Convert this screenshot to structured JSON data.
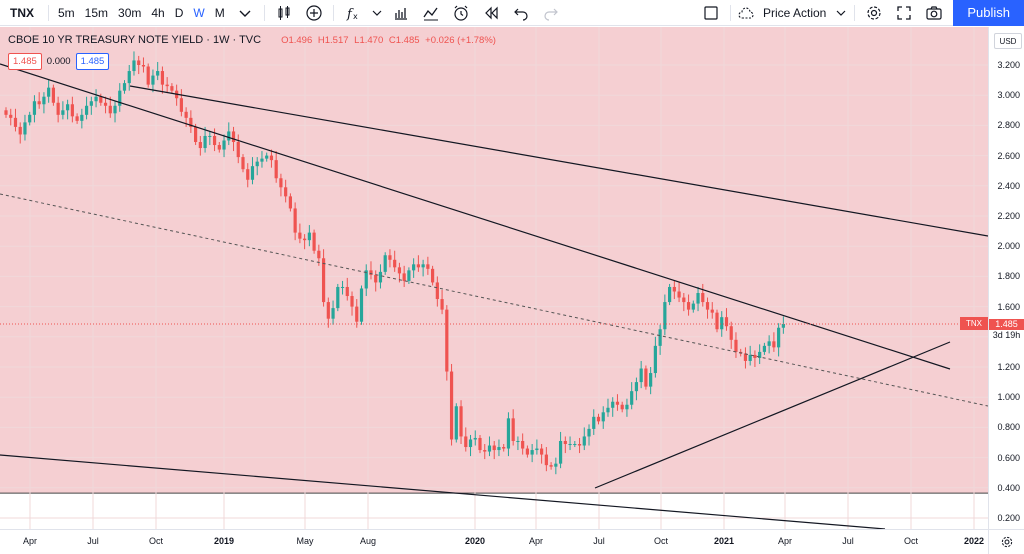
{
  "toolbar": {
    "symbol": "TNX",
    "intervals": [
      "5m",
      "15m",
      "30m",
      "4h",
      "D",
      "W",
      "M"
    ],
    "active_interval": "W",
    "layout_name": "Price Action",
    "publish_label": "Publish"
  },
  "legend": {
    "title": "CBOE 10 YR TREASURY NOTE YIELD · 1W · TVC",
    "open": "O1.496",
    "high": "H1.517",
    "low": "L1.470",
    "close": "C1.485",
    "change": "+0.026 (+1.78%)",
    "val1": "1.485",
    "val2": "0.000",
    "val3": "1.485"
  },
  "price_axis": {
    "currency": "USD",
    "ticks": [
      "3.200",
      "3.000",
      "2.800",
      "2.600",
      "2.400",
      "2.200",
      "2.000",
      "1.800",
      "1.600",
      "1.400",
      "1.200",
      "1.000",
      "0.800",
      "0.600",
      "0.400",
      "0.200"
    ],
    "last_price": "1.485",
    "countdown": "3d 19h",
    "tag": "TNX"
  },
  "time_axis": {
    "labels": [
      {
        "text": "Apr",
        "year": false
      },
      {
        "text": "Jul",
        "year": false
      },
      {
        "text": "Oct",
        "year": false
      },
      {
        "text": "2019",
        "year": true
      },
      {
        "text": "May",
        "year": false
      },
      {
        "text": "Aug",
        "year": false
      },
      {
        "text": "2020",
        "year": true
      },
      {
        "text": "Apr",
        "year": false
      },
      {
        "text": "Jul",
        "year": false
      },
      {
        "text": "Oct",
        "year": false
      },
      {
        "text": "2021",
        "year": true
      },
      {
        "text": "Apr",
        "year": false
      },
      {
        "text": "Jul",
        "year": false
      },
      {
        "text": "Oct",
        "year": false
      },
      {
        "text": "2022",
        "year": true
      }
    ]
  },
  "colors": {
    "up": "#26a69a",
    "down": "#ef5350",
    "bg_zone": "#f5cfd2",
    "accent": "#2962ff"
  },
  "chart_data": {
    "type": "candlestick",
    "ylim": [
      0.2,
      3.3
    ],
    "series": [
      {
        "name": "TNX",
        "close_values": [
          2.87,
          2.85,
          2.79,
          2.74,
          2.82,
          2.87,
          2.96,
          2.94,
          2.99,
          3.05,
          2.95,
          2.87,
          2.9,
          2.94,
          2.86,
          2.83,
          2.87,
          2.93,
          2.96,
          2.99,
          2.95,
          2.93,
          2.88,
          2.93,
          3.03,
          3.08,
          3.16,
          3.23,
          3.2,
          3.19,
          3.07,
          3.13,
          3.16,
          3.07,
          3.06,
          3.03,
          2.98,
          2.89,
          2.85,
          2.79,
          2.69,
          2.65,
          2.73,
          2.73,
          2.67,
          2.64,
          2.7,
          2.76,
          2.69,
          2.59,
          2.51,
          2.44,
          2.53,
          2.56,
          2.58,
          2.6,
          2.57,
          2.45,
          2.39,
          2.33,
          2.25,
          2.09,
          2.05,
          2.04,
          2.09,
          1.97,
          1.92,
          1.63,
          1.52,
          1.59,
          1.73,
          1.73,
          1.67,
          1.6,
          1.5,
          1.72,
          1.84,
          1.81,
          1.76,
          1.83,
          1.94,
          1.91,
          1.86,
          1.82,
          1.77,
          1.84,
          1.88,
          1.86,
          1.88,
          1.85,
          1.76,
          1.65,
          1.58,
          1.17,
          0.72,
          0.94,
          0.74,
          0.67,
          0.72,
          0.73,
          0.65,
          0.64,
          0.68,
          0.65,
          0.67,
          0.66,
          0.86,
          0.71,
          0.71,
          0.66,
          0.62,
          0.65,
          0.66,
          0.62,
          0.55,
          0.54,
          0.56,
          0.71,
          0.69,
          0.69,
          0.69,
          0.68,
          0.74,
          0.79,
          0.87,
          0.84,
          0.9,
          0.93,
          0.97,
          0.95,
          0.92,
          0.95,
          1.04,
          1.1,
          1.19,
          1.07,
          1.16,
          1.34,
          1.45,
          1.63,
          1.73,
          1.7,
          1.66,
          1.63,
          1.58,
          1.62,
          1.69,
          1.63,
          1.58,
          1.56,
          1.45,
          1.53,
          1.47,
          1.38,
          1.3,
          1.29,
          1.24,
          1.28,
          1.26,
          1.3,
          1.34,
          1.37,
          1.33,
          1.46,
          1.485
        ]
      }
    ]
  }
}
